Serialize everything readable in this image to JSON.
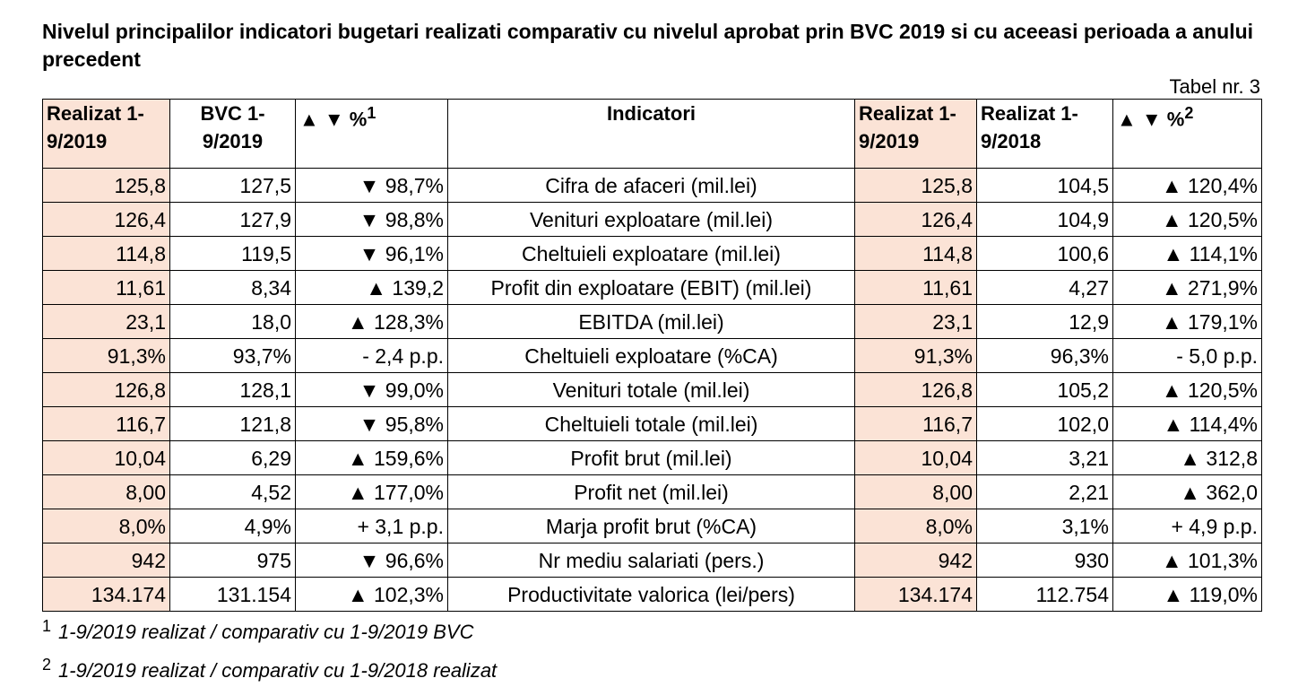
{
  "title": "Nivelul principalilor indicatori bugetari realizati comparativ cu nivelul aprobat prin BVC 2019 si cu aceeasi perioada a anului precedent",
  "table_ref": "Tabel nr. 3",
  "headers": {
    "realizat_2019": "Realizat 1-9/2019",
    "bvc": "BVC 1-9/2019",
    "pct1": "▲ ▼ %",
    "pct1_sup": "1",
    "indicatori": "Indicatori",
    "realizat_2019_b": "Realizat 1-9/2019",
    "realizat_2018": "Realizat 1-9/2018",
    "pct2": "▲ ▼ %",
    "pct2_sup": "2"
  },
  "rows": [
    {
      "r2019": "125,8",
      "bvc": "127,5",
      "p1": "▼ 98,7%",
      "ind": "Cifra de afaceri (mil.lei)",
      "r2019b": "125,8",
      "r2018": "104,5",
      "p2": "▲ 120,4%"
    },
    {
      "r2019": "126,4",
      "bvc": "127,9",
      "p1": "▼ 98,8%",
      "ind": "Venituri exploatare (mil.lei)",
      "r2019b": "126,4",
      "r2018": "104,9",
      "p2": "▲ 120,5%"
    },
    {
      "r2019": "114,8",
      "bvc": "119,5",
      "p1": "▼ 96,1%",
      "ind": "Cheltuieli exploatare (mil.lei)",
      "r2019b": "114,8",
      "r2018": "100,6",
      "p2": "▲ 114,1%"
    },
    {
      "r2019": "11,61",
      "bvc": "8,34",
      "p1": "▲ 139,2",
      "ind": "Profit din exploatare (EBIT) (mil.lei)",
      "r2019b": "11,61",
      "r2018": "4,27",
      "p2": "▲ 271,9%"
    },
    {
      "r2019": "23,1",
      "bvc": "18,0",
      "p1": "▲ 128,3%",
      "ind": "EBITDA (mil.lei)",
      "r2019b": "23,1",
      "r2018": "12,9",
      "p2": "▲ 179,1%"
    },
    {
      "r2019": "91,3%",
      "bvc": "93,7%",
      "p1": "- 2,4 p.p.",
      "ind": "Cheltuieli exploatare (%CA)",
      "r2019b": "91,3%",
      "r2018": "96,3%",
      "p2": "- 5,0 p.p."
    },
    {
      "r2019": "126,8",
      "bvc": "128,1",
      "p1": "▼ 99,0%",
      "ind": "Venituri totale (mil.lei)",
      "r2019b": "126,8",
      "r2018": "105,2",
      "p2": "▲ 120,5%"
    },
    {
      "r2019": "116,7",
      "bvc": "121,8",
      "p1": "▼ 95,8%",
      "ind": "Cheltuieli totale (mil.lei)",
      "r2019b": "116,7",
      "r2018": "102,0",
      "p2": "▲ 114,4%"
    },
    {
      "r2019": "10,04",
      "bvc": "6,29",
      "p1": "▲ 159,6%",
      "ind": "Profit brut (mil.lei)",
      "r2019b": "10,04",
      "r2018": "3,21",
      "p2": "▲ 312,8"
    },
    {
      "r2019": "8,00",
      "bvc": "4,52",
      "p1": "▲ 177,0%",
      "ind": "Profit net (mil.lei)",
      "r2019b": "8,00",
      "r2018": "2,21",
      "p2": "▲ 362,0"
    },
    {
      "r2019": "8,0%",
      "bvc": "4,9%",
      "p1": "+ 3,1 p.p.",
      "ind": "Marja profit brut (%CA)",
      "r2019b": "8,0%",
      "r2018": "3,1%",
      "p2": "+ 4,9 p.p."
    },
    {
      "r2019": "942",
      "bvc": "975",
      "p1": "▼ 96,6%",
      "ind": "Nr mediu salariati (pers.)",
      "r2019b": "942",
      "r2018": "930",
      "p2": "▲ 101,3%"
    },
    {
      "r2019": "134.174",
      "bvc": "131.154",
      "p1": "▲ 102,3%",
      "ind": "Productivitate valorica (lei/pers)",
      "r2019b": "134.174",
      "r2018": "112.754",
      "p2": "▲ 119,0%"
    }
  ],
  "footnotes": [
    {
      "mark": "1",
      "text": "1-9/2019 realizat / comparativ cu 1-9/2019 BVC"
    },
    {
      "mark": "2",
      "text": "1-9/2019 realizat / comparativ cu 1-9/2018 realizat"
    }
  ],
  "colors": {
    "highlight": "#fbe3d6",
    "border": "#000000"
  }
}
